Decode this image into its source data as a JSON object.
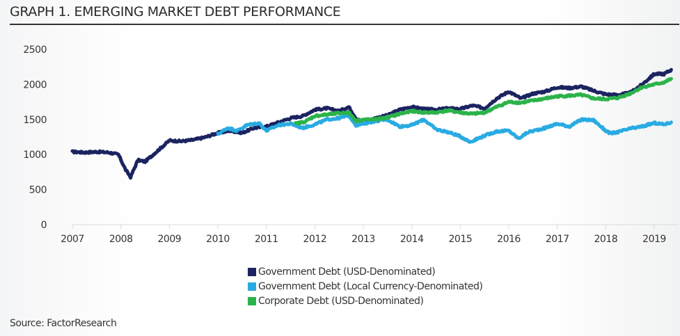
{
  "header": {
    "title": "GRAPH 1.  EMERGING MARKET DEBT PERFORMANCE"
  },
  "footer": {
    "source": "Source: FactorResearch"
  },
  "chart_data": {
    "type": "line",
    "title": "GRAPH 1.  EMERGING MARKET DEBT PERFORMANCE",
    "xlabel": "",
    "ylabel": "",
    "xlim": [
      2007,
      2019.4
    ],
    "ylim": [
      0,
      2500
    ],
    "x_ticks": [
      "2007",
      "2008",
      "2009",
      "2010",
      "2011",
      "2012",
      "2013",
      "2014",
      "2015",
      "2016",
      "2017",
      "2018",
      "2019"
    ],
    "y_ticks": [
      "0",
      "500",
      "1000",
      "1500",
      "2000",
      "2500"
    ],
    "grid": false,
    "legend_position": "bottom-center",
    "series": [
      {
        "name": "Government Debt (USD-Denominated)",
        "color": "#1b2360",
        "x": [
          2007.0,
          2007.25,
          2007.5,
          2007.75,
          2007.95,
          2008.1,
          2008.2,
          2008.35,
          2008.5,
          2008.75,
          2009.0,
          2009.25,
          2009.5,
          2009.75,
          2010.0,
          2010.25,
          2010.5,
          2010.75,
          2011.0,
          2011.25,
          2011.5,
          2011.75,
          2012.0,
          2012.25,
          2012.5,
          2012.7,
          2012.85,
          2013.0,
          2013.25,
          2013.5,
          2013.75,
          2014.0,
          2014.25,
          2014.5,
          2014.75,
          2015.0,
          2015.25,
          2015.5,
          2015.75,
          2016.0,
          2016.25,
          2016.5,
          2016.75,
          2017.0,
          2017.25,
          2017.5,
          2017.75,
          2018.0,
          2018.25,
          2018.5,
          2018.75,
          2019.0,
          2019.2,
          2019.35
        ],
        "values": [
          1040,
          1030,
          1040,
          1030,
          1000,
          780,
          680,
          920,
          900,
          1050,
          1200,
          1190,
          1210,
          1250,
          1310,
          1340,
          1310,
          1380,
          1400,
          1460,
          1520,
          1550,
          1640,
          1660,
          1620,
          1680,
          1520,
          1460,
          1520,
          1560,
          1640,
          1680,
          1650,
          1640,
          1660,
          1650,
          1700,
          1660,
          1800,
          1900,
          1800,
          1870,
          1900,
          1960,
          1950,
          1970,
          1910,
          1860,
          1850,
          1880,
          2000,
          2150,
          2150,
          2210
        ]
      },
      {
        "name": "Government Debt (Local Currency-Denominated)",
        "color": "#29abe2",
        "x": [
          2010.0,
          2010.2,
          2010.4,
          2010.6,
          2010.85,
          2011.0,
          2011.25,
          2011.5,
          2011.75,
          2012.0,
          2012.25,
          2012.5,
          2012.7,
          2012.85,
          2013.0,
          2013.25,
          2013.5,
          2013.75,
          2014.0,
          2014.25,
          2014.5,
          2014.75,
          2015.0,
          2015.2,
          2015.5,
          2015.75,
          2016.0,
          2016.2,
          2016.4,
          2016.75,
          2017.0,
          2017.25,
          2017.5,
          2017.75,
          2018.0,
          2018.1,
          2018.3,
          2018.5,
          2018.75,
          2019.0,
          2019.2,
          2019.35
        ],
        "values": [
          1290,
          1380,
          1340,
          1420,
          1450,
          1340,
          1420,
          1440,
          1380,
          1430,
          1500,
          1520,
          1560,
          1420,
          1440,
          1480,
          1500,
          1400,
          1420,
          1500,
          1360,
          1320,
          1260,
          1180,
          1270,
          1330,
          1340,
          1230,
          1320,
          1380,
          1440,
          1400,
          1500,
          1490,
          1340,
          1300,
          1330,
          1370,
          1400,
          1450,
          1430,
          1460
        ]
      },
      {
        "name": "Corporate Debt (USD-Denominated)",
        "color": "#2bb34a",
        "x": [
          2011.6,
          2011.8,
          2012.0,
          2012.25,
          2012.5,
          2012.7,
          2012.85,
          2013.0,
          2013.25,
          2013.5,
          2013.75,
          2014.0,
          2014.25,
          2014.5,
          2014.75,
          2015.0,
          2015.25,
          2015.5,
          2015.75,
          2016.0,
          2016.25,
          2016.5,
          2016.75,
          2017.0,
          2017.25,
          2017.5,
          2017.75,
          2018.0,
          2018.25,
          2018.5,
          2018.75,
          2019.0,
          2019.2,
          2019.35
        ],
        "values": [
          1440,
          1470,
          1550,
          1570,
          1590,
          1600,
          1480,
          1500,
          1500,
          1530,
          1580,
          1620,
          1600,
          1600,
          1630,
          1600,
          1580,
          1600,
          1680,
          1750,
          1740,
          1770,
          1800,
          1830,
          1840,
          1850,
          1800,
          1790,
          1810,
          1870,
          1960,
          2000,
          2030,
          2080
        ]
      }
    ]
  }
}
